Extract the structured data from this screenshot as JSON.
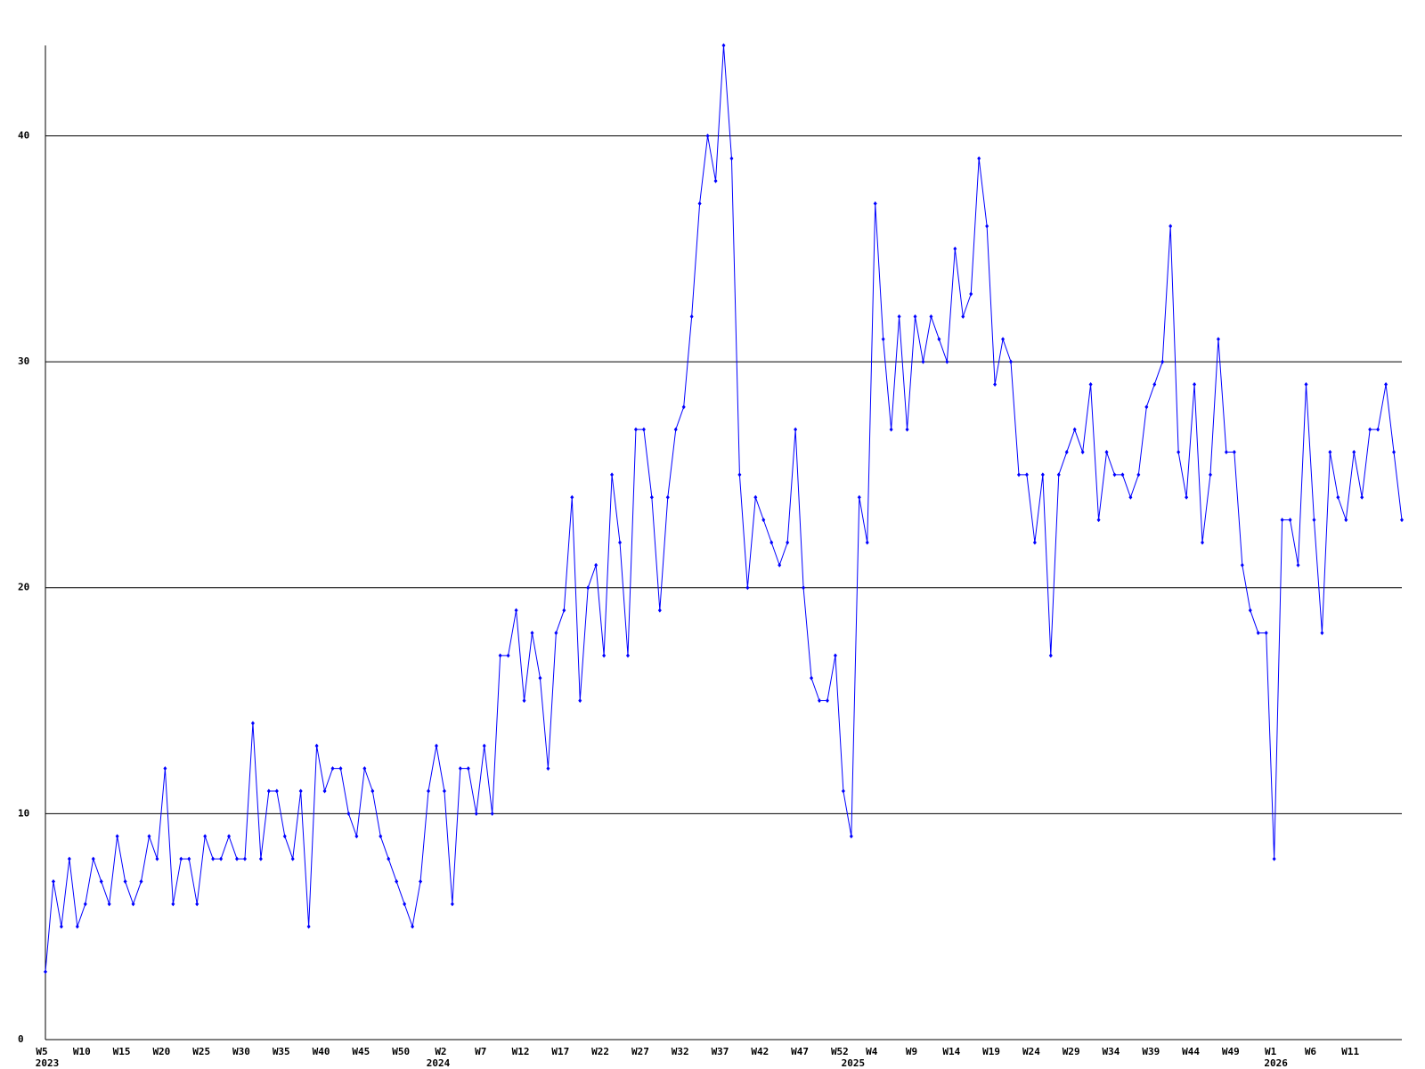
{
  "chart_data": {
    "type": "line",
    "categories": [
      "W5",
      null,
      null,
      null,
      null,
      "W10",
      null,
      null,
      null,
      null,
      "W15",
      null,
      null,
      null,
      null,
      "W20",
      null,
      null,
      null,
      null,
      "W25",
      null,
      null,
      null,
      null,
      "W30",
      null,
      null,
      null,
      null,
      "W35",
      null,
      null,
      null,
      null,
      "W40",
      null,
      null,
      null,
      null,
      "W45",
      null,
      null,
      null,
      null,
      "W50",
      null,
      null,
      null,
      null,
      "W2",
      null,
      null,
      null,
      null,
      "W7",
      null,
      null,
      null,
      null,
      "W12",
      null,
      null,
      null,
      null,
      "W17",
      null,
      null,
      null,
      null,
      "W22",
      null,
      null,
      null,
      null,
      "W27",
      null,
      null,
      null,
      null,
      "W32",
      null,
      null,
      null,
      null,
      "W37",
      null,
      null,
      null,
      null,
      "W42",
      null,
      null,
      null,
      null,
      "W47",
      null,
      null,
      null,
      null,
      "W52",
      null,
      null,
      null,
      "W4",
      null,
      null,
      null,
      null,
      "W9",
      null,
      null,
      null,
      null,
      "W14",
      null,
      null,
      null,
      null,
      "W19",
      null,
      null,
      null,
      null,
      "W24",
      null,
      null,
      null,
      null,
      "W29",
      null,
      null,
      null,
      null,
      "W34",
      null,
      null,
      null,
      null,
      "W39",
      null,
      null,
      null,
      null,
      "W44",
      null,
      null,
      null,
      null,
      "W49",
      null,
      null,
      null,
      null,
      "W1",
      null,
      null,
      null,
      null,
      "W6",
      null,
      null,
      null,
      null,
      "W11",
      null,
      null,
      null,
      null,
      null,
      null
    ],
    "year_labels": [
      "2023",
      null,
      null,
      null,
      null,
      null,
      null,
      null,
      null,
      null,
      null,
      null,
      null,
      null,
      null,
      null,
      null,
      null,
      null,
      null,
      null,
      null,
      null,
      null,
      null,
      null,
      null,
      null,
      null,
      null,
      null,
      null,
      null,
      null,
      null,
      null,
      null,
      null,
      null,
      null,
      null,
      null,
      null,
      null,
      null,
      null,
      null,
      null,
      null,
      "2024",
      null,
      null,
      null,
      null,
      null,
      null,
      null,
      null,
      null,
      null,
      null,
      null,
      null,
      null,
      null,
      null,
      null,
      null,
      null,
      null,
      null,
      null,
      null,
      null,
      null,
      null,
      null,
      null,
      null,
      null,
      null,
      null,
      null,
      null,
      null,
      null,
      null,
      null,
      null,
      null,
      null,
      null,
      null,
      null,
      null,
      null,
      null,
      null,
      null,
      null,
      null,
      "2025",
      null,
      null,
      null,
      null,
      null,
      null,
      null,
      null,
      null,
      null,
      null,
      null,
      null,
      null,
      null,
      null,
      null,
      null,
      null,
      null,
      null,
      null,
      null,
      null,
      null,
      null,
      null,
      null,
      null,
      null,
      null,
      null,
      null,
      null,
      null,
      null,
      null,
      null,
      null,
      null,
      null,
      null,
      null,
      null,
      null,
      null,
      null,
      null,
      null,
      null,
      null,
      null,
      "2026",
      null,
      null,
      null,
      null,
      null,
      null,
      null,
      null,
      null,
      null,
      null,
      null,
      null,
      null,
      null,
      null
    ],
    "values": [
      3,
      7,
      5,
      8,
      5,
      6,
      8,
      7,
      6,
      9,
      7,
      6,
      7,
      9,
      8,
      12,
      6,
      8,
      8,
      6,
      9,
      8,
      8,
      9,
      8,
      8,
      14,
      8,
      11,
      11,
      9,
      8,
      11,
      5,
      13,
      11,
      12,
      12,
      10,
      9,
      12,
      11,
      9,
      8,
      7,
      6,
      5,
      7,
      11,
      13,
      11,
      6,
      12,
      12,
      10,
      13,
      10,
      17,
      17,
      19,
      15,
      18,
      16,
      12,
      18,
      19,
      24,
      15,
      20,
      21,
      17,
      25,
      22,
      17,
      27,
      27,
      24,
      19,
      24,
      27,
      28,
      32,
      37,
      40,
      38,
      44,
      39,
      25,
      20,
      24,
      23,
      22,
      21,
      22,
      27,
      20,
      16,
      15,
      15,
      17,
      11,
      9,
      24,
      22,
      37,
      31,
      27,
      32,
      27,
      32,
      30,
      32,
      31,
      30,
      35,
      32,
      33,
      39,
      36,
      29,
      31,
      30,
      25,
      25,
      22,
      25,
      17,
      25,
      26,
      27,
      26,
      29,
      23,
      26,
      25,
      25,
      24,
      25,
      28,
      29,
      30,
      36,
      26,
      24,
      29,
      22,
      25,
      31,
      26,
      26,
      21,
      19,
      18,
      18,
      8,
      23,
      23,
      21,
      29,
      23,
      18,
      26,
      24,
      23,
      26,
      24,
      27,
      27,
      29,
      26,
      23
    ],
    "color": "#0000ff",
    "ylim": [
      0,
      44
    ],
    "yticks": [
      0,
      10,
      20,
      30,
      40
    ],
    "grid": true
  }
}
